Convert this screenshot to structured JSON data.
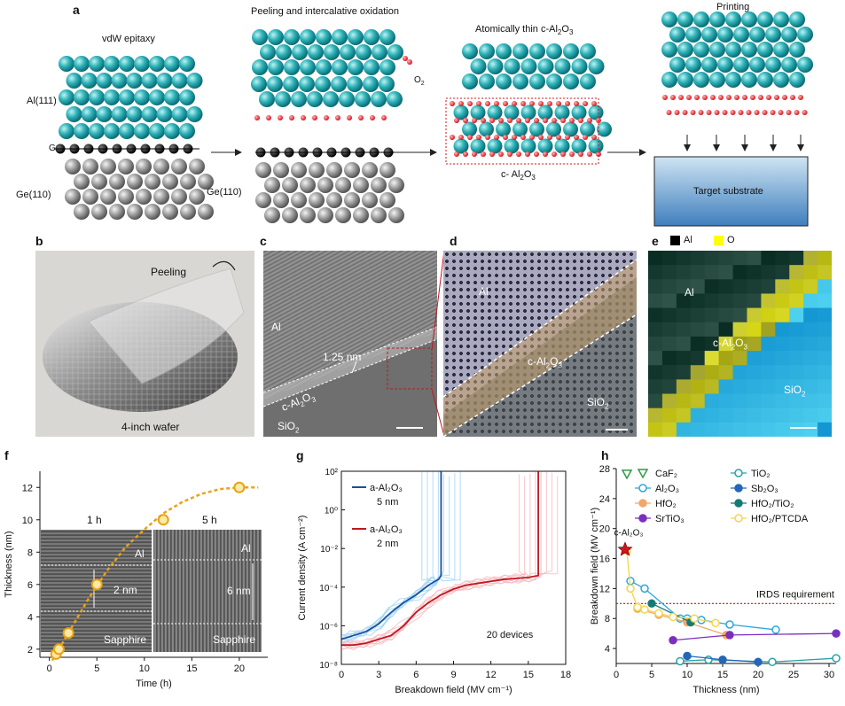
{
  "figure": {
    "panel_a": {
      "label": "a",
      "stage1_title": "vdW epitaxy",
      "stage2_title": "Peeling and intercalative oxidation",
      "stage3_title": "Atomically thin c-Al2O3",
      "stage4_title": "Printing",
      "al111": "Al(111)",
      "gr": "Gr",
      "ge110_left": "Ge(110)",
      "ge110_mid": "Ge(110)",
      "o2": "O2",
      "c_al2o3": "c- Al2O3",
      "target_substrate": "Target substrate"
    },
    "panel_b": {
      "label": "b",
      "peeling": "Peeling",
      "wafer": "4-inch wafer"
    },
    "panel_c": {
      "label": "c",
      "al": "Al",
      "spacing": "1.25 nm",
      "c_al2o3": "c-Al2O3",
      "sio2": "SiO2"
    },
    "panel_d": {
      "label": "d",
      "al": "Al",
      "c_al2o3": "c-Al2O3",
      "sio2": "SiO2"
    },
    "panel_e": {
      "label": "e",
      "legend_al": "Al",
      "legend_o": "O",
      "al": "Al",
      "c_al2o3": "c-Al2O3",
      "sio2": "SiO2"
    },
    "panel_f": {
      "label": "f",
      "inset_left_time": "1 h",
      "inset_right_time": "5 h",
      "inset_left_al": "Al",
      "inset_right_al": "Al",
      "inset_left_thickness": "2 nm",
      "inset_right_thickness": "6 nm",
      "inset_left_sub": "Sapphire",
      "inset_right_sub": "Sapphire"
    },
    "panel_g": {
      "label": "g",
      "annotation": "20 devices"
    },
    "panel_h": {
      "label": "h",
      "irds": "IRDS requirement",
      "star_label": "c-Al2O3"
    }
  },
  "chart_data": [
    {
      "panel": "f",
      "type": "scatter",
      "xlabel": "Time (h)",
      "ylabel": "Thickness (nm)",
      "xlim": [
        -1,
        23
      ],
      "ylim": [
        1.5,
        13
      ],
      "xticks": [
        0,
        5,
        10,
        15,
        20
      ],
      "yticks": [
        2,
        4,
        6,
        8,
        10,
        12
      ],
      "points": {
        "x": [
          0.7,
          1,
          2,
          5,
          12,
          20
        ],
        "y": [
          1.7,
          2,
          3,
          6,
          10,
          12
        ]
      },
      "fit_curve": {
        "x": [
          0.3,
          1,
          2,
          3,
          4,
          5,
          6,
          8,
          10,
          12,
          14,
          16,
          18,
          20,
          22
        ],
        "y": [
          1.3,
          2.0,
          3.0,
          4.0,
          5.0,
          5.9,
          6.8,
          8.3,
          9.4,
          10.4,
          11.1,
          11.6,
          11.9,
          12.0,
          12.0
        ]
      },
      "color": "#e8a317"
    },
    {
      "panel": "g",
      "type": "line",
      "xlabel": "Breakdown field (MV cm⁻¹)",
      "ylabel": "Current density (A cm⁻²)",
      "xlim": [
        0,
        18
      ],
      "ylim_log10": [
        -8,
        2
      ],
      "yscale": "log",
      "xticks": [
        0,
        3,
        6,
        9,
        12,
        15,
        18
      ],
      "ytick_labels": [
        "10⁻⁸",
        "10⁻⁶",
        "10⁻⁴",
        "10⁻²",
        "10⁰",
        "10²"
      ],
      "legend_position": "top-left",
      "series": [
        {
          "name": "a-Al2O3 5 nm",
          "color": "#1a4fa0",
          "x": [
            0,
            1,
            2,
            3,
            4,
            5,
            6,
            7,
            7.5,
            7.8,
            8.0,
            8.0
          ],
          "y_log10": [
            -6.7,
            -6.5,
            -6.3,
            -5.9,
            -5.3,
            -4.8,
            -4.4,
            -3.9,
            -3.7,
            -3.6,
            -3.4,
            2
          ]
        },
        {
          "name": "a-Al2O3 2 nm",
          "color": "#c0171f",
          "x": [
            0,
            1,
            2,
            3,
            4,
            5,
            6,
            7,
            8,
            9,
            10,
            11,
            12,
            13,
            14,
            15,
            15.8,
            15.8
          ],
          "y_log10": [
            -7.0,
            -7.0,
            -6.9,
            -6.7,
            -6.5,
            -6.0,
            -5.3,
            -4.8,
            -4.4,
            -4.1,
            -3.9,
            -3.8,
            -3.7,
            -3.6,
            -3.55,
            -3.5,
            -3.4,
            2
          ]
        }
      ]
    },
    {
      "panel": "h",
      "type": "scatter",
      "xlabel": "Thickness (nm)",
      "ylabel": "Breakdown field (MV cm⁻¹)",
      "xlim": [
        0,
        31
      ],
      "ylim": [
        2,
        28
      ],
      "xticks": [
        0,
        5,
        10,
        15,
        20,
        25,
        30
      ],
      "yticks": [
        4,
        8,
        12,
        16,
        20,
        24,
        28
      ],
      "irds_requirement": 10,
      "legend_position": "top-right",
      "series": [
        {
          "name": "CaF2",
          "color": "#2e9b46",
          "marker": "triangle-down",
          "x": [
            1.5
          ],
          "y": [
            27.3
          ]
        },
        {
          "name": "Al2O3",
          "color": "#29a7e0",
          "marker": "circle",
          "x": [
            2,
            4,
            9,
            10,
            12,
            16,
            22.5
          ],
          "y": [
            13,
            12,
            8,
            8,
            7.8,
            7.2,
            6.5
          ]
        },
        {
          "name": "HfO2",
          "color": "#f2a86a",
          "marker": "circle",
          "x": [
            3,
            6,
            10,
            15.5
          ],
          "y": [
            9.3,
            8.5,
            7.5,
            5.8
          ]
        },
        {
          "name": "SrTiO3",
          "color": "#7b2fbf",
          "marker": "circle",
          "x": [
            8,
            16,
            31
          ],
          "y": [
            5.1,
            5.8,
            6
          ]
        },
        {
          "name": "TiO2",
          "color": "#2aa0a6",
          "marker": "circle",
          "x": [
            9,
            13,
            22,
            31
          ],
          "y": [
            2.3,
            2.5,
            2.2,
            2.7
          ]
        },
        {
          "name": "Sb2O3",
          "color": "#2466b8",
          "marker": "circle",
          "x": [
            10,
            15,
            20
          ],
          "y": [
            3,
            2.5,
            2.2
          ]
        },
        {
          "name": "HfO2/TiO2",
          "color": "#147a78",
          "marker": "circle",
          "x": [
            5,
            10.5
          ],
          "y": [
            10,
            7.5
          ]
        },
        {
          "name": "HfO2/PTCDA",
          "color": "#f5d547",
          "marker": "circle",
          "x": [
            1.5,
            2,
            3,
            4,
            6,
            8,
            11,
            14
          ],
          "y": [
            17,
            12,
            9.5,
            9.2,
            8.7,
            8.2,
            8,
            7.4
          ]
        },
        {
          "name": "c-Al2O3",
          "color": "#d3141c",
          "marker": "star",
          "x": [
            1.25
          ],
          "y": [
            17.2
          ]
        }
      ]
    }
  ]
}
